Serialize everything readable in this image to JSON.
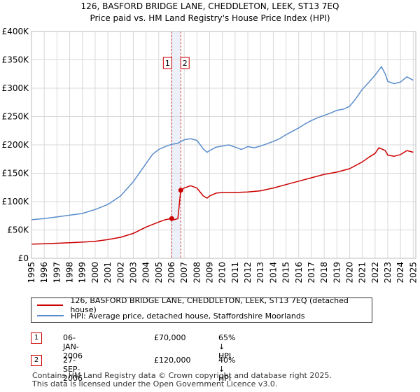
{
  "header": {
    "title": "126, BASFORD BRIDGE LANE, CHEDDLETON, LEEK, ST13 7EQ",
    "subtitle": "Price paid vs. HM Land Registry's House Price Index (HPI)"
  },
  "colors": {
    "property": "#cc0000",
    "hpi": "#5b8dcb",
    "marker_band": "#dde6f5",
    "grid": "#d8d8d8"
  },
  "chart_data": {
    "type": "line",
    "title": "126, BASFORD BRIDGE LANE, CHEDDLETON, LEEK, ST13 7EQ",
    "subtitle": "Price paid vs. HM Land Registry's House Price Index (HPI)",
    "xlim": [
      1995,
      2025.2
    ],
    "ylim": [
      0,
      400000
    ],
    "y_ticks": [
      0,
      50000,
      100000,
      150000,
      200000,
      250000,
      300000,
      350000,
      400000
    ],
    "y_tick_labels": [
      "£0",
      "£50K",
      "£100K",
      "£150K",
      "£200K",
      "£250K",
      "£300K",
      "£350K",
      "£400K"
    ],
    "x_ticks": [
      1995,
      1996,
      1997,
      1998,
      1999,
      2000,
      2001,
      2002,
      2003,
      2004,
      2005,
      2006,
      2007,
      2008,
      2009,
      2010,
      2011,
      2012,
      2013,
      2014,
      2015,
      2016,
      2017,
      2018,
      2019,
      2020,
      2021,
      2022,
      2023,
      2024,
      2025
    ],
    "x_tick_labels": [
      "1995",
      "1996",
      "1997",
      "1998",
      "1999",
      "2000",
      "2001",
      "2002",
      "2003",
      "2004",
      "2005",
      "2006",
      "2007",
      "2008",
      "2009",
      "2010",
      "2011",
      "2012",
      "2013",
      "2014",
      "2015",
      "2016",
      "2017",
      "2018",
      "2019",
      "2020",
      "2021",
      "2022",
      "2023",
      "2024",
      "2025"
    ],
    "grid": true,
    "legend_position": "below",
    "series": [
      {
        "name": "126, BASFORD BRIDGE LANE, CHEDDLETON, LEEK, ST13 7EQ (detached house)",
        "color": "#cc0000",
        "x": [
          1995.0,
          1996.0,
          1997.0,
          1998.0,
          1999.0,
          2000.0,
          2001.0,
          2002.0,
          2003.0,
          2004.0,
          2005.0,
          2005.5,
          2006.02,
          2006.2,
          2006.5,
          2006.73,
          2007.0,
          2007.5,
          2008.0,
          2008.5,
          2008.8,
          2009.0,
          2009.5,
          2010.0,
          2011.0,
          2012.0,
          2013.0,
          2014.0,
          2015.0,
          2016.0,
          2017.0,
          2018.0,
          2019.0,
          2020.0,
          2021.0,
          2021.5,
          2022.0,
          2022.3,
          2022.5,
          2022.8,
          2023.0,
          2023.5,
          2024.0,
          2024.5,
          2025.0
        ],
        "y": [
          25000,
          25500,
          26500,
          27500,
          28500,
          30000,
          33000,
          37000,
          44000,
          55000,
          64000,
          68000,
          70000,
          68000,
          70000,
          120000,
          124000,
          128000,
          124000,
          110000,
          106000,
          110000,
          115000,
          116000,
          116000,
          117000,
          119000,
          124000,
          130000,
          136000,
          142000,
          148000,
          152000,
          158000,
          170000,
          178000,
          185000,
          195000,
          193000,
          190000,
          182000,
          180000,
          183000,
          190000,
          187000
        ]
      },
      {
        "name": "HPI: Average price, detached house, Staffordshire Moorlands",
        "color": "#5b8dcb",
        "x": [
          1995.0,
          1996.0,
          1997.0,
          1998.0,
          1999.0,
          2000.0,
          2001.0,
          2002.0,
          2003.0,
          2004.0,
          2004.5,
          2005.0,
          2005.5,
          2006.0,
          2006.5,
          2007.0,
          2007.5,
          2008.0,
          2008.5,
          2008.8,
          2009.0,
          2009.5,
          2010.0,
          2010.5,
          2011.0,
          2011.5,
          2012.0,
          2012.5,
          2013.0,
          2013.5,
          2014.0,
          2014.5,
          2015.0,
          2015.5,
          2016.0,
          2016.5,
          2017.0,
          2017.5,
          2018.0,
          2018.5,
          2019.0,
          2019.5,
          2020.0,
          2020.5,
          2021.0,
          2021.5,
          2022.0,
          2022.5,
          2022.8,
          2023.0,
          2023.5,
          2024.0,
          2024.5,
          2025.0
        ],
        "y": [
          68000,
          70000,
          73000,
          76000,
          79000,
          86000,
          95000,
          110000,
          135000,
          167000,
          183000,
          192000,
          197000,
          201000,
          203000,
          209000,
          211000,
          208000,
          193000,
          187000,
          190000,
          196000,
          198000,
          200000,
          196000,
          192000,
          197000,
          195000,
          198000,
          202000,
          206000,
          211000,
          218000,
          224000,
          230000,
          237000,
          243000,
          248000,
          252000,
          256000,
          261000,
          263000,
          268000,
          282000,
          298000,
          310000,
          323000,
          338000,
          325000,
          312000,
          308000,
          311000,
          320000,
          314000
        ]
      }
    ],
    "annotations": [
      {
        "label": "1",
        "x": 2006.02,
        "price": 70000
      },
      {
        "label": "2",
        "x": 2006.73,
        "price": 120000
      }
    ]
  },
  "legend": {
    "property_label": "126, BASFORD BRIDGE LANE, CHEDDLETON, LEEK, ST13 7EQ (detached house)",
    "hpi_label": "HPI: Average price, detached house, Staffordshire Moorlands"
  },
  "transactions": [
    {
      "num": "1",
      "date": "06-JAN-2006",
      "price": "£70,000",
      "hpi": "65% ↓ HPI"
    },
    {
      "num": "2",
      "date": "27-SEP-2006",
      "price": "£120,000",
      "hpi": "40% ↓ HPI"
    }
  ],
  "footer": {
    "line1": "Contains HM Land Registry data © Crown copyright and database right 2025.",
    "line2": "This data is licensed under the Open Government Licence v3.0."
  }
}
